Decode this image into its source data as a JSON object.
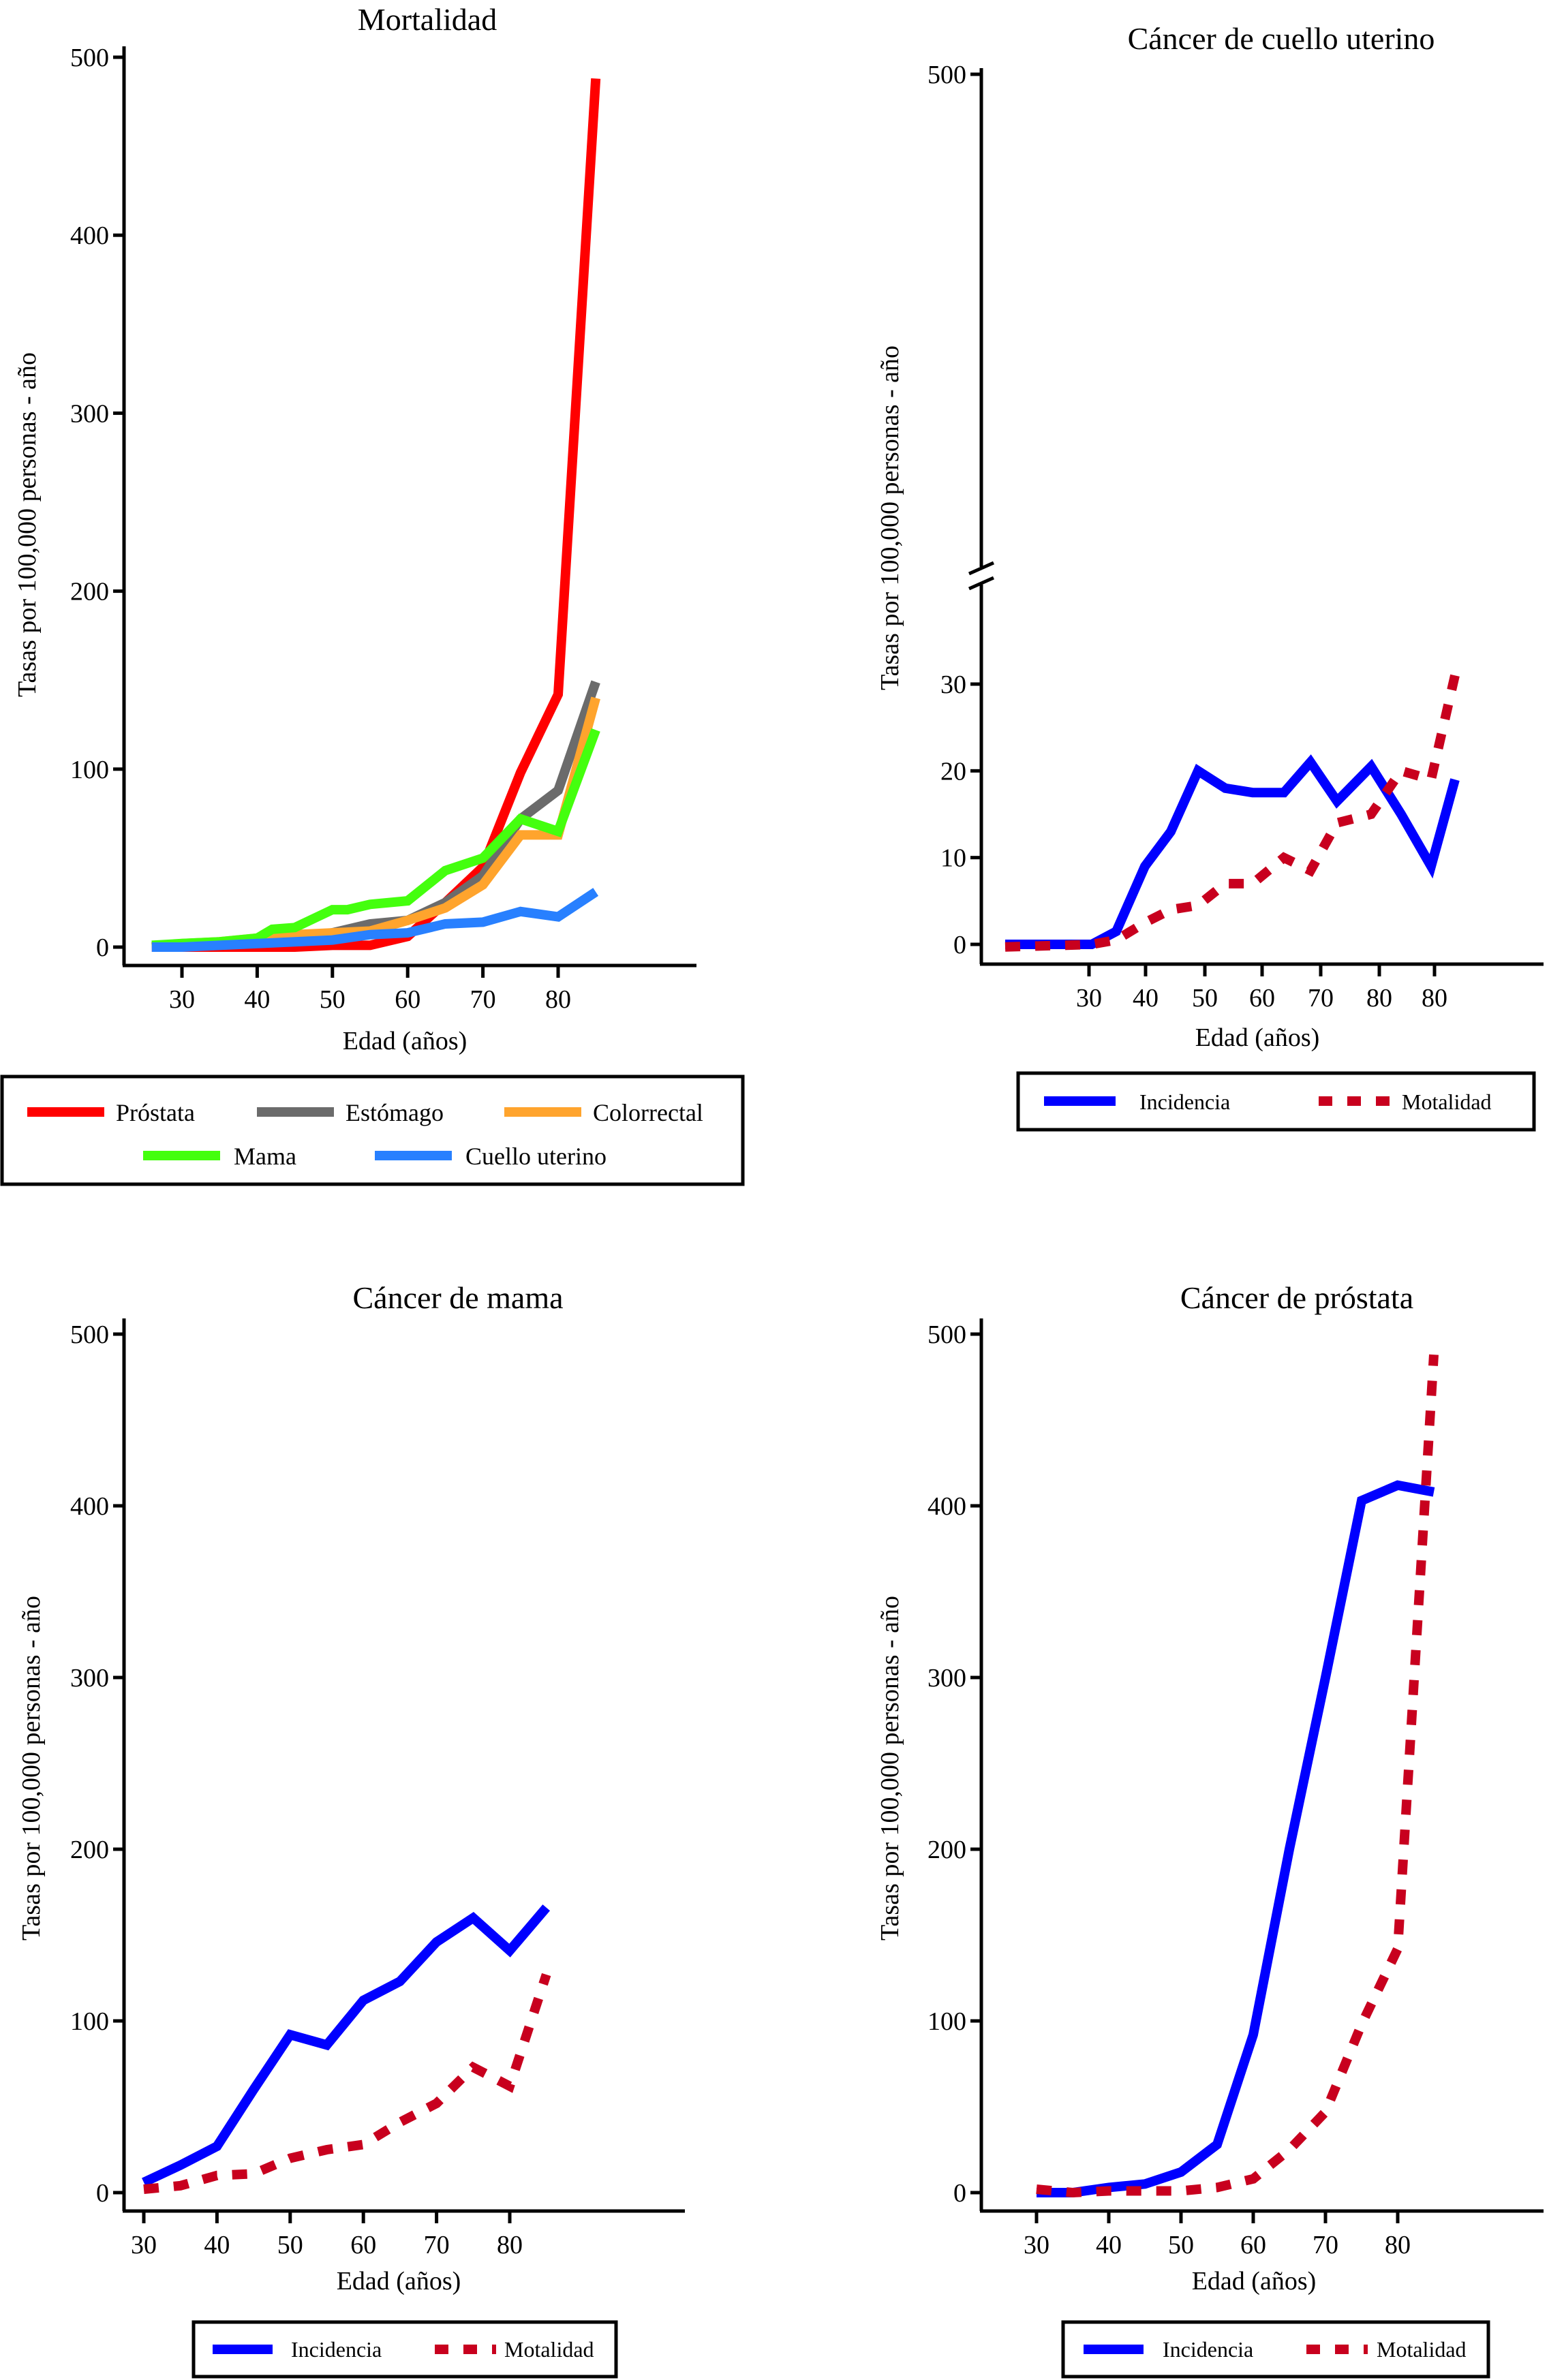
{
  "chart_data": [
    {
      "id": "mortalidad",
      "type": "line",
      "title": "Mortalidad",
      "xlabel": "Edad (años)",
      "ylabel": "Tasas por 100,000 personas - año",
      "ylim": [
        -10,
        510
      ],
      "yticks": [
        0,
        100,
        200,
        300,
        400,
        500
      ],
      "xticks": [
        30,
        40,
        50,
        60,
        70,
        80
      ],
      "xtick_labels": [
        "30",
        "40",
        "50",
        "60",
        "70",
        "80"
      ],
      "grid": false,
      "legend_position": "bottom",
      "series": [
        {
          "name": "Próstata",
          "color": "#ff0000",
          "x": [
            26,
            30,
            35,
            40,
            45,
            50,
            55,
            60,
            65,
            70,
            75,
            80,
            85
          ],
          "y": [
            0,
            0,
            0,
            0,
            0,
            1,
            1,
            6,
            25,
            45,
            98,
            142,
            488
          ]
        },
        {
          "name": "Estómago",
          "color": "#6b6b6b",
          "x": [
            26,
            30,
            35,
            40,
            45,
            50,
            55,
            60,
            65,
            70,
            75,
            80,
            85
          ],
          "y": [
            0,
            1,
            2,
            3,
            5,
            8,
            13,
            15,
            25,
            40,
            72,
            88,
            149
          ]
        },
        {
          "name": "Colorrectal",
          "color": "#ffa42d",
          "x": [
            26,
            30,
            35,
            40,
            45,
            50,
            55,
            60,
            65,
            70,
            75,
            80,
            85
          ],
          "y": [
            0,
            2,
            3,
            5,
            7,
            8,
            9,
            15,
            22,
            35,
            63,
            63,
            140
          ]
        },
        {
          "name": "Mama",
          "color": "#44ff0e",
          "x": [
            26,
            30,
            35,
            40,
            42,
            45,
            50,
            52,
            55,
            60,
            65,
            70,
            75,
            80,
            85
          ],
          "y": [
            1,
            2,
            3,
            5,
            10,
            11,
            21,
            21,
            24,
            26,
            43,
            50,
            72,
            65,
            122
          ]
        },
        {
          "name": "Cuello uterino",
          "color": "#2880ff",
          "x": [
            26,
            30,
            35,
            40,
            45,
            50,
            55,
            60,
            65,
            70,
            75,
            80,
            85
          ],
          "y": [
            0,
            0,
            1,
            2,
            3,
            4,
            7,
            8,
            13,
            14,
            20,
            17,
            31
          ]
        }
      ]
    },
    {
      "id": "cuello",
      "type": "line",
      "title": "Cáncer de cuello uterino",
      "xlabel": "Edad (años)",
      "ylabel": "Tasas por 100,000 personas - año",
      "ylim": [
        -2,
        500
      ],
      "axis_break": true,
      "yticks": [
        0,
        10,
        20,
        30,
        500
      ],
      "xtick_labels": [
        "30",
        "40",
        "50",
        "60",
        "70",
        "80",
        "80"
      ],
      "grid": false,
      "legend_position": "bottom",
      "series": [
        {
          "name": "Incidencia",
          "color": "#0000ff",
          "style": "solid",
          "x": [
            15,
            20,
            25,
            30,
            35,
            40,
            45,
            50,
            55,
            60,
            65,
            70,
            75,
            80,
            85,
            90,
            95
          ],
          "y": [
            0,
            0,
            0,
            0,
            1.5,
            9,
            13,
            20,
            18,
            17.5,
            17.5,
            21,
            16.5,
            20.5,
            15,
            9,
            19
          ]
        },
        {
          "name": "Motalidad",
          "color": "#c8001e",
          "style": "dashed",
          "x": [
            15,
            20,
            25,
            30,
            35,
            40,
            45,
            50,
            55,
            60,
            65,
            70,
            75,
            80,
            85,
            90,
            95
          ],
          "y": [
            -0.3,
            -0.2,
            -0.1,
            0,
            0.5,
            2.5,
            4,
            4.5,
            7,
            7,
            10,
            8.5,
            14,
            15,
            20,
            19,
            31
          ]
        }
      ]
    },
    {
      "id": "mama",
      "type": "line",
      "title": "Cáncer de mama",
      "xlabel": "Edad (años)",
      "ylabel": "Tasas por 100,000 personas - año",
      "ylim": [
        -10,
        510
      ],
      "yticks": [
        0,
        100,
        200,
        300,
        400,
        500
      ],
      "xticks": [
        30,
        40,
        50,
        60,
        70,
        80
      ],
      "xtick_labels": [
        "30",
        "40",
        "50",
        "60",
        "70",
        "80"
      ],
      "grid": false,
      "legend_position": "bottom",
      "series": [
        {
          "name": "Incidencia",
          "color": "#0000ff",
          "style": "solid",
          "x": [
            30,
            35,
            40,
            45,
            50,
            55,
            60,
            65,
            70,
            75,
            80,
            85
          ],
          "y": [
            6,
            16,
            27,
            60,
            92,
            86,
            112,
            123,
            146,
            160,
            141,
            166
          ]
        },
        {
          "name": "Motalidad",
          "color": "#c8001e",
          "style": "dashed",
          "x": [
            30,
            35,
            40,
            45,
            50,
            55,
            60,
            65,
            70,
            75,
            80,
            85
          ],
          "y": [
            2,
            4,
            10,
            11,
            20,
            25,
            28,
            41,
            52,
            73,
            62,
            127
          ]
        }
      ]
    },
    {
      "id": "prostata",
      "type": "line",
      "title": "Cáncer de próstata",
      "xlabel": "Edad (años)",
      "ylabel": "Tasas por 100,000 personas - año",
      "ylim": [
        -10,
        510
      ],
      "yticks": [
        0,
        100,
        200,
        300,
        400,
        500
      ],
      "xticks": [
        30,
        40,
        50,
        60,
        70,
        80
      ],
      "xtick_labels": [
        "30",
        "40",
        "50",
        "60",
        "70",
        "80"
      ],
      "grid": false,
      "legend_position": "bottom",
      "series": [
        {
          "name": "Incidencia",
          "color": "#0000ff",
          "style": "solid",
          "x": [
            30,
            35,
            40,
            45,
            50,
            55,
            60,
            65,
            70,
            75,
            80,
            85
          ],
          "y": [
            0,
            0,
            3,
            5,
            12,
            28,
            92,
            200,
            300,
            403,
            412,
            408
          ]
        },
        {
          "name": "Motalidad",
          "color": "#c8001e",
          "style": "dashed",
          "x": [
            30,
            35,
            40,
            45,
            50,
            55,
            60,
            65,
            70,
            75,
            80,
            85
          ],
          "y": [
            2,
            0,
            1,
            1,
            1,
            3,
            8,
            25,
            47,
            98,
            142,
            488
          ]
        }
      ]
    }
  ]
}
